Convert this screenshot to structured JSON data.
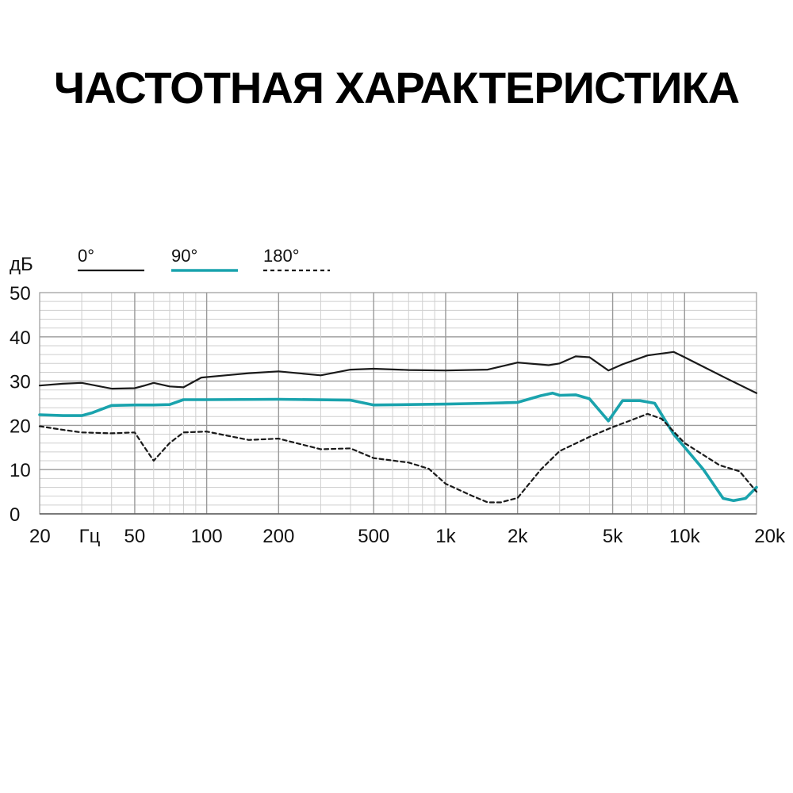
{
  "title": "ЧАСТОТНАЯ ХАРАКТЕРИСТИКА",
  "chart_data": {
    "type": "line",
    "title": "ЧАСТОТНАЯ ХАРАКТЕРИСТИКА",
    "ylabel": "дБ",
    "xlabel": "Гц",
    "x_scale": "log",
    "xlim": [
      20,
      20000
    ],
    "ylim": [
      0,
      50
    ],
    "grid": true,
    "legend_position": "top-left",
    "x_ticks": [
      {
        "value": 20,
        "label": "20"
      },
      {
        "value": 50,
        "label": "50"
      },
      {
        "value": 100,
        "label": "100"
      },
      {
        "value": 200,
        "label": "200"
      },
      {
        "value": 500,
        "label": "500"
      },
      {
        "value": 1000,
        "label": "1k"
      },
      {
        "value": 2000,
        "label": "2k"
      },
      {
        "value": 5000,
        "label": "5k"
      },
      {
        "value": 10000,
        "label": "10k"
      },
      {
        "value": 20000,
        "label": "20k"
      }
    ],
    "y_ticks": [
      0,
      10,
      20,
      30,
      40,
      50
    ],
    "series": [
      {
        "name": "0°",
        "color": "#1a1a1a",
        "dash": "solid",
        "points": [
          [
            20,
            29
          ],
          [
            25,
            29.4
          ],
          [
            30,
            29.6
          ],
          [
            35,
            28.9
          ],
          [
            40,
            28.3
          ],
          [
            50,
            28.4
          ],
          [
            55,
            29
          ],
          [
            60,
            29.6
          ],
          [
            70,
            28.8
          ],
          [
            80,
            28.6
          ],
          [
            95,
            30.8
          ],
          [
            120,
            31.3
          ],
          [
            150,
            31.8
          ],
          [
            200,
            32.2
          ],
          [
            300,
            31.3
          ],
          [
            400,
            32.6
          ],
          [
            500,
            32.8
          ],
          [
            700,
            32.5
          ],
          [
            1000,
            32.4
          ],
          [
            1500,
            32.6
          ],
          [
            2000,
            34.2
          ],
          [
            2700,
            33.6
          ],
          [
            3000,
            34
          ],
          [
            3500,
            35.6
          ],
          [
            4000,
            35.4
          ],
          [
            4800,
            32.4
          ],
          [
            5500,
            33.8
          ],
          [
            7000,
            35.8
          ],
          [
            9000,
            36.6
          ],
          [
            10000,
            35.4
          ],
          [
            15000,
            30.6
          ],
          [
            20000,
            27.3
          ]
        ]
      },
      {
        "name": "90°",
        "color": "#1aa3ad",
        "dash": "solid",
        "points": [
          [
            20,
            22.4
          ],
          [
            25,
            22.2
          ],
          [
            30,
            22.2
          ],
          [
            33,
            22.8
          ],
          [
            40,
            24.5
          ],
          [
            50,
            24.6
          ],
          [
            60,
            24.6
          ],
          [
            70,
            24.7
          ],
          [
            80,
            25.8
          ],
          [
            100,
            25.8
          ],
          [
            200,
            25.9
          ],
          [
            400,
            25.7
          ],
          [
            500,
            24.6
          ],
          [
            700,
            24.7
          ],
          [
            1000,
            24.8
          ],
          [
            1500,
            25
          ],
          [
            2000,
            25.2
          ],
          [
            2500,
            26.7
          ],
          [
            2800,
            27.3
          ],
          [
            3000,
            26.8
          ],
          [
            3500,
            26.9
          ],
          [
            4000,
            26
          ],
          [
            4800,
            21
          ],
          [
            5500,
            25.6
          ],
          [
            6500,
            25.6
          ],
          [
            7500,
            25
          ],
          [
            9000,
            18
          ],
          [
            12000,
            10
          ],
          [
            14500,
            3.5
          ],
          [
            16000,
            3
          ],
          [
            18000,
            3.5
          ],
          [
            20000,
            6
          ]
        ]
      },
      {
        "name": "180°",
        "color": "#1a1a1a",
        "dash": "dashed",
        "points": [
          [
            20,
            19.8
          ],
          [
            25,
            19
          ],
          [
            30,
            18.4
          ],
          [
            40,
            18.2
          ],
          [
            50,
            18.4
          ],
          [
            55,
            15
          ],
          [
            60,
            12
          ],
          [
            70,
            16
          ],
          [
            80,
            18.4
          ],
          [
            100,
            18.6
          ],
          [
            150,
            16.7
          ],
          [
            200,
            17
          ],
          [
            300,
            14.6
          ],
          [
            400,
            14.8
          ],
          [
            500,
            12.6
          ],
          [
            700,
            11.6
          ],
          [
            850,
            10.2
          ],
          [
            1000,
            6.8
          ],
          [
            1300,
            4
          ],
          [
            1500,
            2.6
          ],
          [
            1700,
            2.6
          ],
          [
            2000,
            3.6
          ],
          [
            2500,
            10
          ],
          [
            3000,
            14.2
          ],
          [
            4000,
            17.4
          ],
          [
            5000,
            19.6
          ],
          [
            6000,
            21.2
          ],
          [
            7000,
            22.6
          ],
          [
            8000,
            21.5
          ],
          [
            10000,
            16
          ],
          [
            14000,
            11
          ],
          [
            17000,
            9.6
          ],
          [
            20000,
            5
          ]
        ]
      }
    ]
  }
}
